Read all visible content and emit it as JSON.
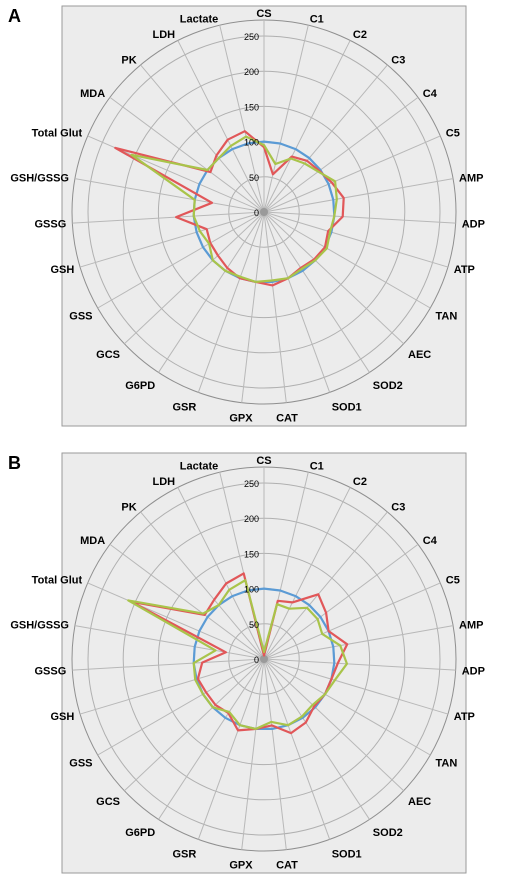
{
  "chart_data": [
    {
      "type": "radar",
      "panel_label": "A",
      "categories": [
        "CS",
        "C1",
        "C2",
        "C3",
        "C4",
        "C5",
        "AMP",
        "ADP",
        "ATP",
        "TAN",
        "AEC",
        "SOD2",
        "SOD1",
        "CAT",
        "GPX",
        "GSR",
        "G6PD",
        "GCS",
        "GSS",
        "GSH",
        "GSSG",
        "GSH/GSSG",
        "Total Glut",
        "MDA",
        "PK",
        "LDH",
        "Lactate"
      ],
      "radial_ticks": [
        0,
        50,
        100,
        150,
        200,
        250
      ],
      "rlim": [
        0,
        250
      ],
      "grid": true,
      "legend": "none",
      "series": [
        {
          "color": "#5b9bd5",
          "values": [
            100,
            100,
            100,
            100,
            100,
            100,
            100,
            100,
            100,
            100,
            100,
            100,
            100,
            100,
            100,
            100,
            100,
            100,
            100,
            100,
            100,
            100,
            100,
            100,
            100,
            100,
            100
          ]
        },
        {
          "color": "#e15759",
          "values": [
            92,
            55,
            88,
            95,
            98,
            105,
            115,
            112,
            95,
            100,
            98,
            95,
            100,
            105,
            100,
            100,
            95,
            90,
            88,
            85,
            125,
            75,
            230,
            95,
            105,
            115,
            118
          ]
        },
        {
          "color": "#a9c44a",
          "values": [
            95,
            70,
            85,
            90,
            96,
            110,
            105,
            100,
            98,
            103,
            100,
            97,
            100,
            98,
            100,
            98,
            100,
            100,
            90,
            95,
            100,
            100,
            205,
            100,
            100,
            105,
            110
          ]
        }
      ]
    },
    {
      "type": "radar",
      "panel_label": "B",
      "categories": [
        "CS",
        "C1",
        "C2",
        "C3",
        "C4",
        "C5",
        "AMP",
        "ADP",
        "ATP",
        "TAN",
        "AEC",
        "SOD2",
        "SOD1",
        "CAT",
        "GPX",
        "GSR",
        "G6PD",
        "GCS",
        "GSS",
        "GSH",
        "GSSG",
        "GSH/GSSG",
        "Total Glut",
        "MDA",
        "PK",
        "LDH",
        "Lactate"
      ],
      "radial_ticks": [
        0,
        50,
        100,
        150,
        200,
        250
      ],
      "rlim": [
        0,
        250
      ],
      "grid": true,
      "legend": "none",
      "series": [
        {
          "color": "#5b9bd5",
          "values": [
            100,
            100,
            100,
            100,
            100,
            100,
            100,
            100,
            100,
            100,
            100,
            100,
            100,
            100,
            100,
            100,
            100,
            100,
            100,
            100,
            100,
            100,
            100,
            100,
            100,
            100,
            100
          ]
        },
        {
          "color": "#e15759",
          "values": [
            5,
            85,
            90,
            120,
            110,
            100,
            120,
            105,
            100,
            100,
            98,
            108,
            112,
            95,
            100,
            108,
            92,
            95,
            95,
            98,
            88,
            55,
            205,
            105,
            110,
            120,
            125
          ]
        },
        {
          "color": "#a9c44a",
          "values": [
            10,
            80,
            80,
            95,
            95,
            90,
            110,
            118,
            105,
            100,
            95,
            98,
            100,
            90,
            100,
            100,
            90,
            100,
            100,
            102,
            100,
            70,
            210,
            108,
            100,
            110,
            115
          ]
        }
      ]
    }
  ]
}
